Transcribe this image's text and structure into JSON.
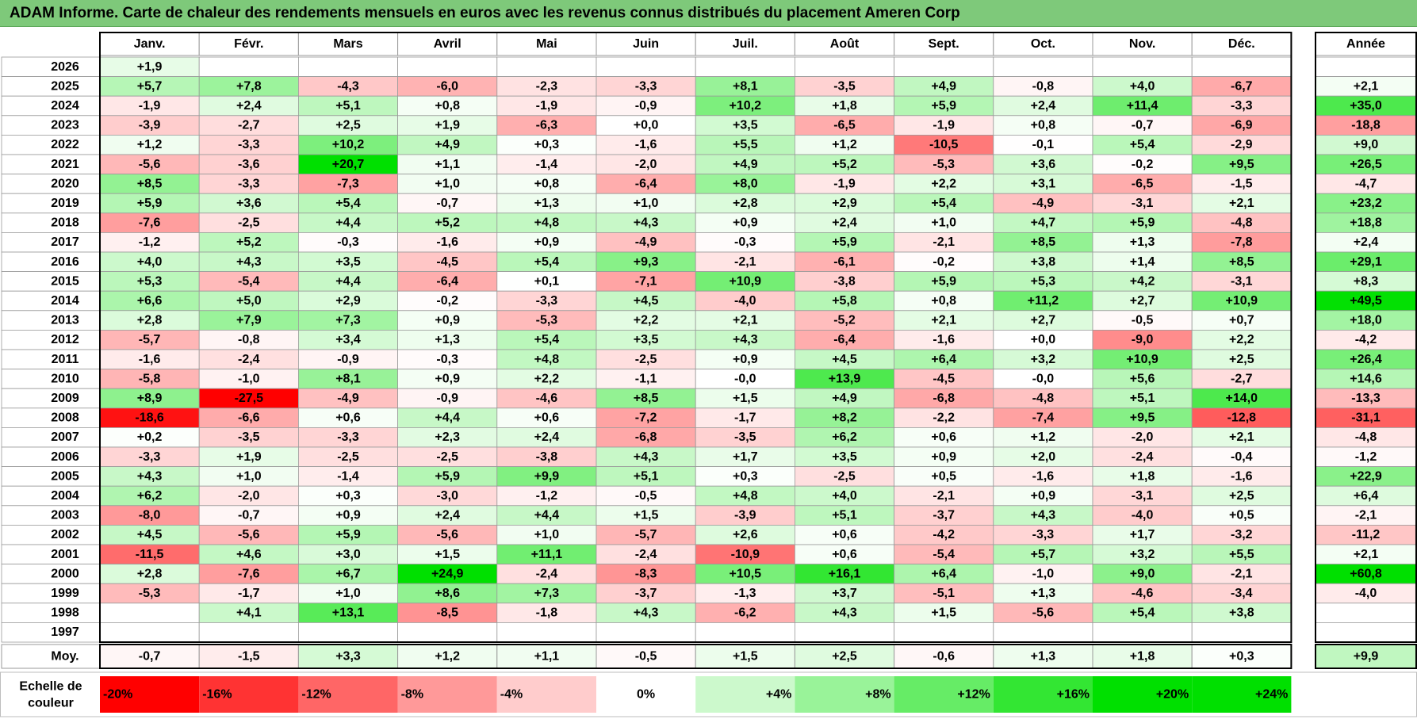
{
  "title": "ADAM Informe. Carte de chaleur des rendements mensuels en euros avec les revenus connus distribués du placement Ameren Corp",
  "chart_data": {
    "type": "heatmap",
    "months": [
      "Janv.",
      "Févr.",
      "Mars",
      "Avril",
      "Mai",
      "Juin",
      "Juil.",
      "Août",
      "Sept.",
      "Oct.",
      "Nov.",
      "Déc."
    ],
    "year_header": "Année",
    "rows": [
      {
        "year": "2026",
        "values": [
          "+1,9",
          "",
          "",
          "",
          "",
          "",
          "",
          "",
          "",
          "",
          "",
          ""
        ],
        "annual": ""
      },
      {
        "year": "2025",
        "values": [
          "+5,7",
          "+7,8",
          "-4,3",
          "-6,0",
          "-2,3",
          "-3,3",
          "+8,1",
          "-3,5",
          "+4,9",
          "-0,8",
          "+4,0",
          "-6,7"
        ],
        "annual": "+2,1"
      },
      {
        "year": "2024",
        "values": [
          "-1,9",
          "+2,4",
          "+5,1",
          "+0,8",
          "-1,9",
          "-0,9",
          "+10,2",
          "+1,8",
          "+5,9",
          "+2,4",
          "+11,4",
          "-3,3"
        ],
        "annual": "+35,0"
      },
      {
        "year": "2023",
        "values": [
          "-3,9",
          "-2,7",
          "+2,5",
          "+1,9",
          "-6,3",
          "+0,0",
          "+3,5",
          "-6,5",
          "-1,9",
          "+0,8",
          "-0,7",
          "-6,9"
        ],
        "annual": "-18,8"
      },
      {
        "year": "2022",
        "values": [
          "+1,2",
          "-3,3",
          "+10,2",
          "+4,9",
          "+0,3",
          "-1,6",
          "+5,5",
          "+1,2",
          "-10,5",
          "-0,1",
          "+5,4",
          "-2,9"
        ],
        "annual": "+9,0"
      },
      {
        "year": "2021",
        "values": [
          "-5,6",
          "-3,6",
          "+20,7",
          "+1,1",
          "-1,4",
          "-2,0",
          "+4,9",
          "+5,2",
          "-5,3",
          "+3,6",
          "-0,2",
          "+9,5"
        ],
        "annual": "+26,5"
      },
      {
        "year": "2020",
        "values": [
          "+8,5",
          "-3,3",
          "-7,3",
          "+1,0",
          "+0,8",
          "-6,4",
          "+8,0",
          "-1,9",
          "+2,2",
          "+3,1",
          "-6,5",
          "-1,5"
        ],
        "annual": "-4,7"
      },
      {
        "year": "2019",
        "values": [
          "+5,9",
          "+3,6",
          "+5,4",
          "-0,7",
          "+1,3",
          "+1,0",
          "+2,8",
          "+2,9",
          "+5,4",
          "-4,9",
          "-3,1",
          "+2,1"
        ],
        "annual": "+23,2"
      },
      {
        "year": "2018",
        "values": [
          "-7,6",
          "-2,5",
          "+4,4",
          "+5,2",
          "+4,8",
          "+4,3",
          "+0,9",
          "+2,4",
          "+1,0",
          "+4,7",
          "+5,9",
          "-4,8"
        ],
        "annual": "+18,8"
      },
      {
        "year": "2017",
        "values": [
          "-1,2",
          "+5,2",
          "-0,3",
          "-1,6",
          "+0,9",
          "-4,9",
          "-0,3",
          "+5,9",
          "-2,1",
          "+8,5",
          "+1,3",
          "-7,8"
        ],
        "annual": "+2,4"
      },
      {
        "year": "2016",
        "values": [
          "+4,0",
          "+4,3",
          "+3,5",
          "-4,5",
          "+5,4",
          "+9,3",
          "-2,1",
          "-6,1",
          "-0,2",
          "+3,8",
          "+1,4",
          "+8,5"
        ],
        "annual": "+29,1"
      },
      {
        "year": "2015",
        "values": [
          "+5,3",
          "-5,4",
          "+4,4",
          "-6,4",
          "+0,1",
          "-7,1",
          "+10,9",
          "-3,8",
          "+5,9",
          "+5,3",
          "+4,2",
          "-3,1"
        ],
        "annual": "+8,3"
      },
      {
        "year": "2014",
        "values": [
          "+6,6",
          "+5,0",
          "+2,9",
          "-0,2",
          "-3,3",
          "+4,5",
          "-4,0",
          "+5,8",
          "+0,8",
          "+11,2",
          "+2,7",
          "+10,9"
        ],
        "annual": "+49,5"
      },
      {
        "year": "2013",
        "values": [
          "+2,8",
          "+7,9",
          "+7,3",
          "+0,9",
          "-5,3",
          "+2,2",
          "+2,1",
          "-5,2",
          "+2,1",
          "+2,7",
          "-0,5",
          "+0,7"
        ],
        "annual": "+18,0"
      },
      {
        "year": "2012",
        "values": [
          "-5,7",
          "-0,8",
          "+3,4",
          "+1,3",
          "+5,4",
          "+3,5",
          "+4,3",
          "-6,4",
          "-1,6",
          "+0,0",
          "-9,0",
          "+2,2"
        ],
        "annual": "-4,2"
      },
      {
        "year": "2011",
        "values": [
          "-1,6",
          "-2,4",
          "-0,9",
          "-0,3",
          "+4,8",
          "-2,5",
          "+0,9",
          "+4,5",
          "+6,4",
          "+3,2",
          "+10,9",
          "+2,5"
        ],
        "annual": "+26,4"
      },
      {
        "year": "2010",
        "values": [
          "-5,8",
          "-1,0",
          "+8,1",
          "+0,9",
          "+2,2",
          "-1,1",
          "-0,0",
          "+13,9",
          "-4,5",
          "-0,0",
          "+5,6",
          "-2,7"
        ],
        "annual": "+14,6"
      },
      {
        "year": "2009",
        "values": [
          "+8,9",
          "-27,5",
          "-4,9",
          "-0,9",
          "-4,6",
          "+8,5",
          "+1,5",
          "+4,9",
          "-6,8",
          "-4,8",
          "+5,1",
          "+14,0"
        ],
        "annual": "-13,3"
      },
      {
        "year": "2008",
        "values": [
          "-18,6",
          "-6,6",
          "+0,6",
          "+4,4",
          "+0,6",
          "-7,2",
          "-1,7",
          "+8,2",
          "-2,2",
          "-7,4",
          "+9,5",
          "-12,8"
        ],
        "annual": "-31,1"
      },
      {
        "year": "2007",
        "values": [
          "+0,2",
          "-3,5",
          "-3,3",
          "+2,3",
          "+2,4",
          "-6,8",
          "-3,5",
          "+6,2",
          "+0,6",
          "+1,2",
          "-2,0",
          "+2,1"
        ],
        "annual": "-4,8"
      },
      {
        "year": "2006",
        "values": [
          "-3,3",
          "+1,9",
          "-2,5",
          "-2,5",
          "-3,8",
          "+4,3",
          "+1,7",
          "+3,5",
          "+0,9",
          "+2,0",
          "-2,4",
          "-0,4"
        ],
        "annual": "-1,2"
      },
      {
        "year": "2005",
        "values": [
          "+4,3",
          "+1,0",
          "-1,4",
          "+5,9",
          "+9,9",
          "+5,1",
          "+0,3",
          "-2,5",
          "+0,5",
          "-1,6",
          "+1,8",
          "-1,6"
        ],
        "annual": "+22,9"
      },
      {
        "year": "2004",
        "values": [
          "+6,2",
          "-2,0",
          "+0,3",
          "-3,0",
          "-1,2",
          "-0,5",
          "+4,8",
          "+4,0",
          "-2,1",
          "+0,9",
          "-3,1",
          "+2,5"
        ],
        "annual": "+6,4"
      },
      {
        "year": "2003",
        "values": [
          "-8,0",
          "-0,7",
          "+0,9",
          "+2,4",
          "+4,4",
          "+1,5",
          "-3,9",
          "+5,1",
          "-3,7",
          "+4,3",
          "-4,0",
          "+0,5"
        ],
        "annual": "-2,1"
      },
      {
        "year": "2002",
        "values": [
          "+4,5",
          "-5,6",
          "+5,9",
          "-5,6",
          "+1,0",
          "-5,7",
          "+2,6",
          "+0,6",
          "-4,2",
          "-3,3",
          "+1,7",
          "-3,2"
        ],
        "annual": "-11,2"
      },
      {
        "year": "2001",
        "values": [
          "-11,5",
          "+4,6",
          "+3,0",
          "+1,5",
          "+11,1",
          "-2,4",
          "-10,9",
          "+0,6",
          "-5,4",
          "+5,7",
          "+3,2",
          "+5,5"
        ],
        "annual": "+2,1"
      },
      {
        "year": "2000",
        "values": [
          "+2,8",
          "-7,6",
          "+6,7",
          "+24,9",
          "-2,4",
          "-8,3",
          "+10,5",
          "+16,1",
          "+6,4",
          "-1,0",
          "+9,0",
          "-2,1"
        ],
        "annual": "+60,8"
      },
      {
        "year": "1999",
        "values": [
          "-5,3",
          "-1,7",
          "+1,0",
          "+8,6",
          "+7,3",
          "-3,7",
          "-1,3",
          "+3,7",
          "-5,1",
          "+1,3",
          "-4,6",
          "-3,4"
        ],
        "annual": "-4,0"
      },
      {
        "year": "1998",
        "values": [
          "",
          "+4,1",
          "+13,1",
          "-8,5",
          "-1,8",
          "+4,3",
          "-6,2",
          "+4,3",
          "+1,5",
          "-5,6",
          "+5,4",
          "+3,8"
        ],
        "annual": ""
      },
      {
        "year": "1997",
        "values": [
          "",
          "",
          "",
          "",
          "",
          "",
          "",
          "",
          "",
          "",
          "",
          ""
        ],
        "annual": ""
      }
    ],
    "average": {
      "label": "Moy.",
      "values": [
        "-0,7",
        "-1,5",
        "+3,3",
        "+1,2",
        "+1,1",
        "-0,5",
        "+1,5",
        "+2,5",
        "-0,6",
        "+1,3",
        "+1,8",
        "+0,3"
      ],
      "annual": "+9,9"
    },
    "scale": {
      "label_line1": "Echelle de",
      "label_line2": "couleur",
      "steps": [
        {
          "label": "-20%",
          "value": -20
        },
        {
          "label": "-16%",
          "value": -16
        },
        {
          "label": "-12%",
          "value": -12
        },
        {
          "label": "-8%",
          "value": -8
        },
        {
          "label": "-4%",
          "value": -4
        },
        {
          "label": "0%",
          "value": 0
        },
        {
          "label": "+4%",
          "value": 4
        },
        {
          "label": "+8%",
          "value": 8
        },
        {
          "label": "+12%",
          "value": 12
        },
        {
          "label": "+16%",
          "value": 16
        },
        {
          "label": "+20%",
          "value": 20
        },
        {
          "label": "+24%",
          "value": 24
        }
      ]
    },
    "colors": {
      "negative": "#ff0000",
      "positive": "#00e000",
      "neutral": "#ffffff",
      "title_bg": "#7ec97a",
      "grid": "#9a9a9a"
    }
  }
}
